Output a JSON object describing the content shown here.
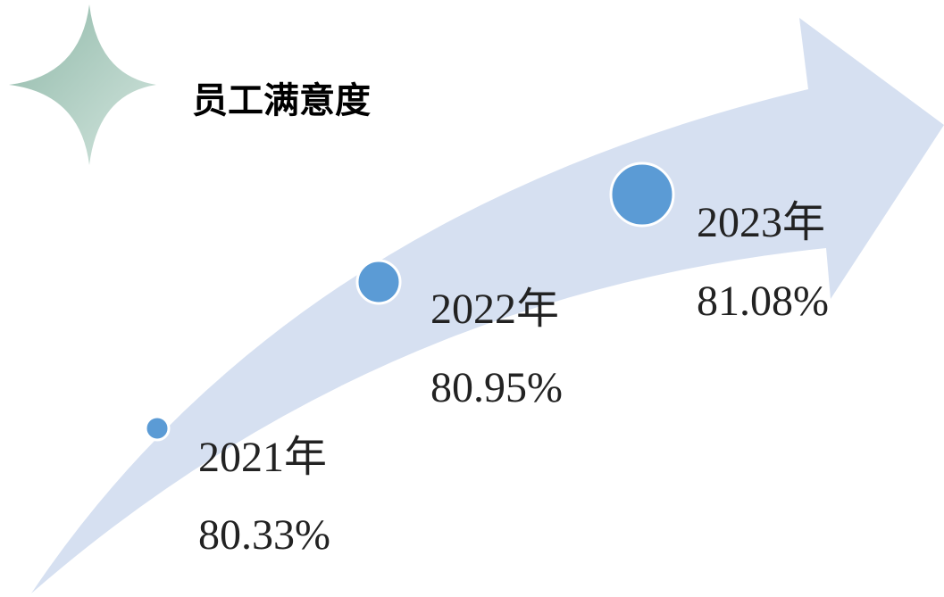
{
  "title": "员工满意度",
  "items": [
    {
      "year": "2021年",
      "value": "80.33%"
    },
    {
      "year": "2022年",
      "value": "80.95%"
    },
    {
      "year": "2023年",
      "value": "81.08%"
    }
  ]
}
